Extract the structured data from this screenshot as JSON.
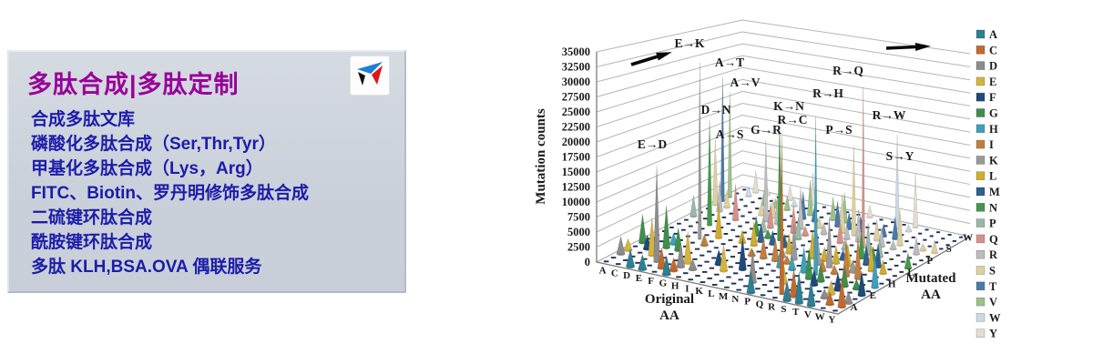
{
  "left_panel": {
    "title": "多肽合成|多肽定制",
    "logo_icon": "triangle-pinwheel-logo",
    "logo_colors": {
      "blue": "#1d7fd6",
      "black": "#111111",
      "red": "#e01515"
    },
    "services": [
      "合成多肽文库",
      "磷酸化多肽合成（Ser,Thr,Tyr）",
      "甲基化多肽合成（Lys，Arg）",
      "FITC、Biotin、罗丹明修饰多肽合成",
      "二硫键环肽合成",
      "酰胺键环肽合成",
      "多肽 KLH,BSA.OVA 偶联服务"
    ],
    "colors": {
      "background": "#ccd2db",
      "title": "#990099",
      "text": "#1c1caa"
    }
  },
  "chart_data": {
    "type": "bar",
    "subtype": "3d-cone-grid",
    "title": "",
    "ylabel": "Mutation counts",
    "xlabel": "Original AA",
    "zlabel": "Mutated AA",
    "ylim": [
      0,
      35000
    ],
    "ytick_step": 2500,
    "grid": true,
    "legend_position": "right",
    "x_categories": [
      "A",
      "C",
      "D",
      "E",
      "F",
      "G",
      "H",
      "I",
      "K",
      "L",
      "M",
      "N",
      "P",
      "Q",
      "R",
      "S",
      "T",
      "V",
      "W",
      "Y"
    ],
    "z_categories": [
      "A",
      "C",
      "D",
      "E",
      "F",
      "G",
      "H",
      "I",
      "K",
      "L",
      "M",
      "N",
      "P",
      "Q",
      "R",
      "S",
      "T",
      "V",
      "W",
      "Y"
    ],
    "z_axis_shown_labels": [
      "A",
      "E",
      "H",
      "L",
      "P",
      "S",
      "W"
    ],
    "legend": [
      {
        "label": "A",
        "color": "#2E7F93"
      },
      {
        "label": "C",
        "color": "#C06A30"
      },
      {
        "label": "D",
        "color": "#8C8C8C"
      },
      {
        "label": "E",
        "color": "#D4B43E"
      },
      {
        "label": "F",
        "color": "#1F4A7A"
      },
      {
        "label": "G",
        "color": "#3F8F4C"
      },
      {
        "label": "H",
        "color": "#3FA0B8"
      },
      {
        "label": "I",
        "color": "#C08040"
      },
      {
        "label": "K",
        "color": "#9A9A9A"
      },
      {
        "label": "L",
        "color": "#D0AC30"
      },
      {
        "label": "M",
        "color": "#2F6090"
      },
      {
        "label": "N",
        "color": "#44984C"
      },
      {
        "label": "P",
        "color": "#9AB8A8"
      },
      {
        "label": "Q",
        "color": "#D4928A"
      },
      {
        "label": "R",
        "color": "#BCBCBC"
      },
      {
        "label": "S",
        "color": "#DDD0A0"
      },
      {
        "label": "T",
        "color": "#4A7AA8"
      },
      {
        "label": "V",
        "color": "#9CC08C"
      },
      {
        "label": "W",
        "color": "#CCD8E4"
      },
      {
        "label": "Y",
        "color": "#E4DCD0"
      }
    ],
    "peaks": [
      {
        "label": "E→K",
        "original": "E",
        "mutated": "K",
        "value": 32500
      },
      {
        "label": "R→Q",
        "original": "R",
        "mutated": "Q",
        "value": 32000
      },
      {
        "label": "R→H",
        "original": "R",
        "mutated": "H",
        "value": 29000
      },
      {
        "label": "R→C",
        "original": "R",
        "mutated": "C",
        "value": 27500
      },
      {
        "label": "A→T",
        "original": "A",
        "mutated": "T",
        "value": 25000
      },
      {
        "label": "K→N",
        "original": "K",
        "mutated": "N",
        "value": 22500
      },
      {
        "label": "A→V",
        "original": "A",
        "mutated": "V",
        "value": 21500
      },
      {
        "label": "D→N",
        "original": "D",
        "mutated": "N",
        "value": 20000
      },
      {
        "label": "R→W",
        "original": "R",
        "mutated": "W",
        "value": 20000
      },
      {
        "label": "P→S",
        "original": "P",
        "mutated": "S",
        "value": 18000
      },
      {
        "label": "E→D",
        "original": "E",
        "mutated": "D",
        "value": 16500
      },
      {
        "label": "G→R",
        "original": "G",
        "mutated": "R",
        "value": 16000
      },
      {
        "label": "A→S",
        "original": "A",
        "mutated": "S",
        "value": 13000
      },
      {
        "label": "S→Y",
        "original": "S",
        "mutated": "Y",
        "value": 11500
      }
    ],
    "background_spikes": [
      [
        "A",
        "D",
        3000
      ],
      [
        "A",
        "E",
        2000
      ],
      [
        "A",
        "G",
        5000
      ],
      [
        "A",
        "P",
        4000
      ],
      [
        "C",
        "F",
        2500
      ],
      [
        "C",
        "G",
        1500
      ],
      [
        "C",
        "R",
        6000
      ],
      [
        "C",
        "S",
        3500
      ],
      [
        "C",
        "W",
        2000
      ],
      [
        "C",
        "Y",
        4500
      ],
      [
        "D",
        "A",
        3000
      ],
      [
        "D",
        "E",
        6500
      ],
      [
        "D",
        "G",
        7500
      ],
      [
        "D",
        "H",
        2000
      ],
      [
        "D",
        "Y",
        1500
      ],
      [
        "E",
        "A",
        2500
      ],
      [
        "E",
        "G",
        4000
      ],
      [
        "E",
        "Q",
        7000
      ],
      [
        "E",
        "V",
        3000
      ],
      [
        "F",
        "C",
        3500
      ],
      [
        "F",
        "I",
        2000
      ],
      [
        "F",
        "L",
        6500
      ],
      [
        "F",
        "S",
        2500
      ],
      [
        "F",
        "V",
        1800
      ],
      [
        "F",
        "Y",
        3000
      ],
      [
        "G",
        "A",
        3200
      ],
      [
        "G",
        "C",
        2200
      ],
      [
        "G",
        "D",
        4200
      ],
      [
        "G",
        "E",
        5500
      ],
      [
        "G",
        "S",
        3800
      ],
      [
        "G",
        "V",
        2800
      ],
      [
        "G",
        "W",
        1500
      ],
      [
        "H",
        "D",
        1800
      ],
      [
        "H",
        "L",
        2400
      ],
      [
        "H",
        "N",
        3600
      ],
      [
        "H",
        "P",
        2800
      ],
      [
        "H",
        "Q",
        4800
      ],
      [
        "H",
        "R",
        5200
      ],
      [
        "H",
        "Y",
        6800
      ],
      [
        "I",
        "F",
        2600
      ],
      [
        "I",
        "L",
        4400
      ],
      [
        "I",
        "M",
        3400
      ],
      [
        "I",
        "N",
        1600
      ],
      [
        "I",
        "T",
        5600
      ],
      [
        "I",
        "V",
        7200
      ],
      [
        "K",
        "E",
        4600
      ],
      [
        "K",
        "I",
        1400
      ],
      [
        "K",
        "M",
        2600
      ],
      [
        "K",
        "Q",
        5400
      ],
      [
        "K",
        "R",
        8200
      ],
      [
        "K",
        "T",
        3200
      ],
      [
        "L",
        "F",
        5800
      ],
      [
        "L",
        "I",
        3800
      ],
      [
        "L",
        "M",
        2400
      ],
      [
        "L",
        "P",
        4200
      ],
      [
        "L",
        "Q",
        1800
      ],
      [
        "L",
        "S",
        2200
      ],
      [
        "L",
        "V",
        4800
      ],
      [
        "L",
        "W",
        1200
      ],
      [
        "M",
        "I",
        4200
      ],
      [
        "M",
        "K",
        1800
      ],
      [
        "M",
        "L",
        3600
      ],
      [
        "M",
        "R",
        2200
      ],
      [
        "M",
        "T",
        5200
      ],
      [
        "M",
        "V",
        6200
      ],
      [
        "N",
        "D",
        5600
      ],
      [
        "N",
        "H",
        3200
      ],
      [
        "N",
        "I",
        1400
      ],
      [
        "N",
        "K",
        6600
      ],
      [
        "N",
        "S",
        7800
      ],
      [
        "N",
        "T",
        3400
      ],
      [
        "N",
        "Y",
        2600
      ],
      [
        "P",
        "A",
        3600
      ],
      [
        "P",
        "H",
        2400
      ],
      [
        "P",
        "L",
        5400
      ],
      [
        "P",
        "Q",
        4400
      ],
      [
        "P",
        "R",
        2800
      ],
      [
        "P",
        "T",
        3200
      ],
      [
        "Q",
        "E",
        3800
      ],
      [
        "Q",
        "H",
        4600
      ],
      [
        "Q",
        "K",
        5800
      ],
      [
        "Q",
        "L",
        2600
      ],
      [
        "Q",
        "P",
        1800
      ],
      [
        "Q",
        "R",
        6400
      ],
      [
        "R",
        "G",
        5500
      ],
      [
        "R",
        "I",
        2200
      ],
      [
        "R",
        "K",
        9500
      ],
      [
        "R",
        "L",
        3400
      ],
      [
        "R",
        "M",
        1800
      ],
      [
        "R",
        "S",
        4200
      ],
      [
        "R",
        "T",
        2600
      ],
      [
        "S",
        "A",
        3400
      ],
      [
        "S",
        "C",
        4800
      ],
      [
        "S",
        "F",
        2800
      ],
      [
        "S",
        "G",
        3000
      ],
      [
        "S",
        "I",
        1600
      ],
      [
        "S",
        "L",
        4200
      ],
      [
        "S",
        "N",
        5200
      ],
      [
        "S",
        "P",
        6200
      ],
      [
        "S",
        "R",
        3800
      ],
      [
        "S",
        "T",
        4600
      ],
      [
        "S",
        "W",
        1400
      ],
      [
        "T",
        "A",
        5400
      ],
      [
        "T",
        "I",
        6800
      ],
      [
        "T",
        "K",
        2400
      ],
      [
        "T",
        "M",
        3800
      ],
      [
        "T",
        "N",
        2800
      ],
      [
        "T",
        "P",
        3400
      ],
      [
        "T",
        "R",
        1800
      ],
      [
        "T",
        "S",
        7400
      ],
      [
        "V",
        "A",
        4400
      ],
      [
        "V",
        "D",
        1600
      ],
      [
        "V",
        "E",
        2400
      ],
      [
        "V",
        "F",
        3200
      ],
      [
        "V",
        "G",
        3600
      ],
      [
        "V",
        "I",
        7800
      ],
      [
        "V",
        "L",
        5200
      ],
      [
        "V",
        "M",
        4600
      ],
      [
        "W",
        "C",
        2200
      ],
      [
        "W",
        "G",
        1800
      ],
      [
        "W",
        "L",
        2600
      ],
      [
        "W",
        "R",
        3400
      ],
      [
        "W",
        "S",
        1400
      ],
      [
        "Y",
        "C",
        5200
      ],
      [
        "Y",
        "D",
        2000
      ],
      [
        "Y",
        "F",
        4400
      ],
      [
        "Y",
        "H",
        6200
      ],
      [
        "Y",
        "N",
        3000
      ],
      [
        "Y",
        "S",
        2600
      ]
    ]
  }
}
